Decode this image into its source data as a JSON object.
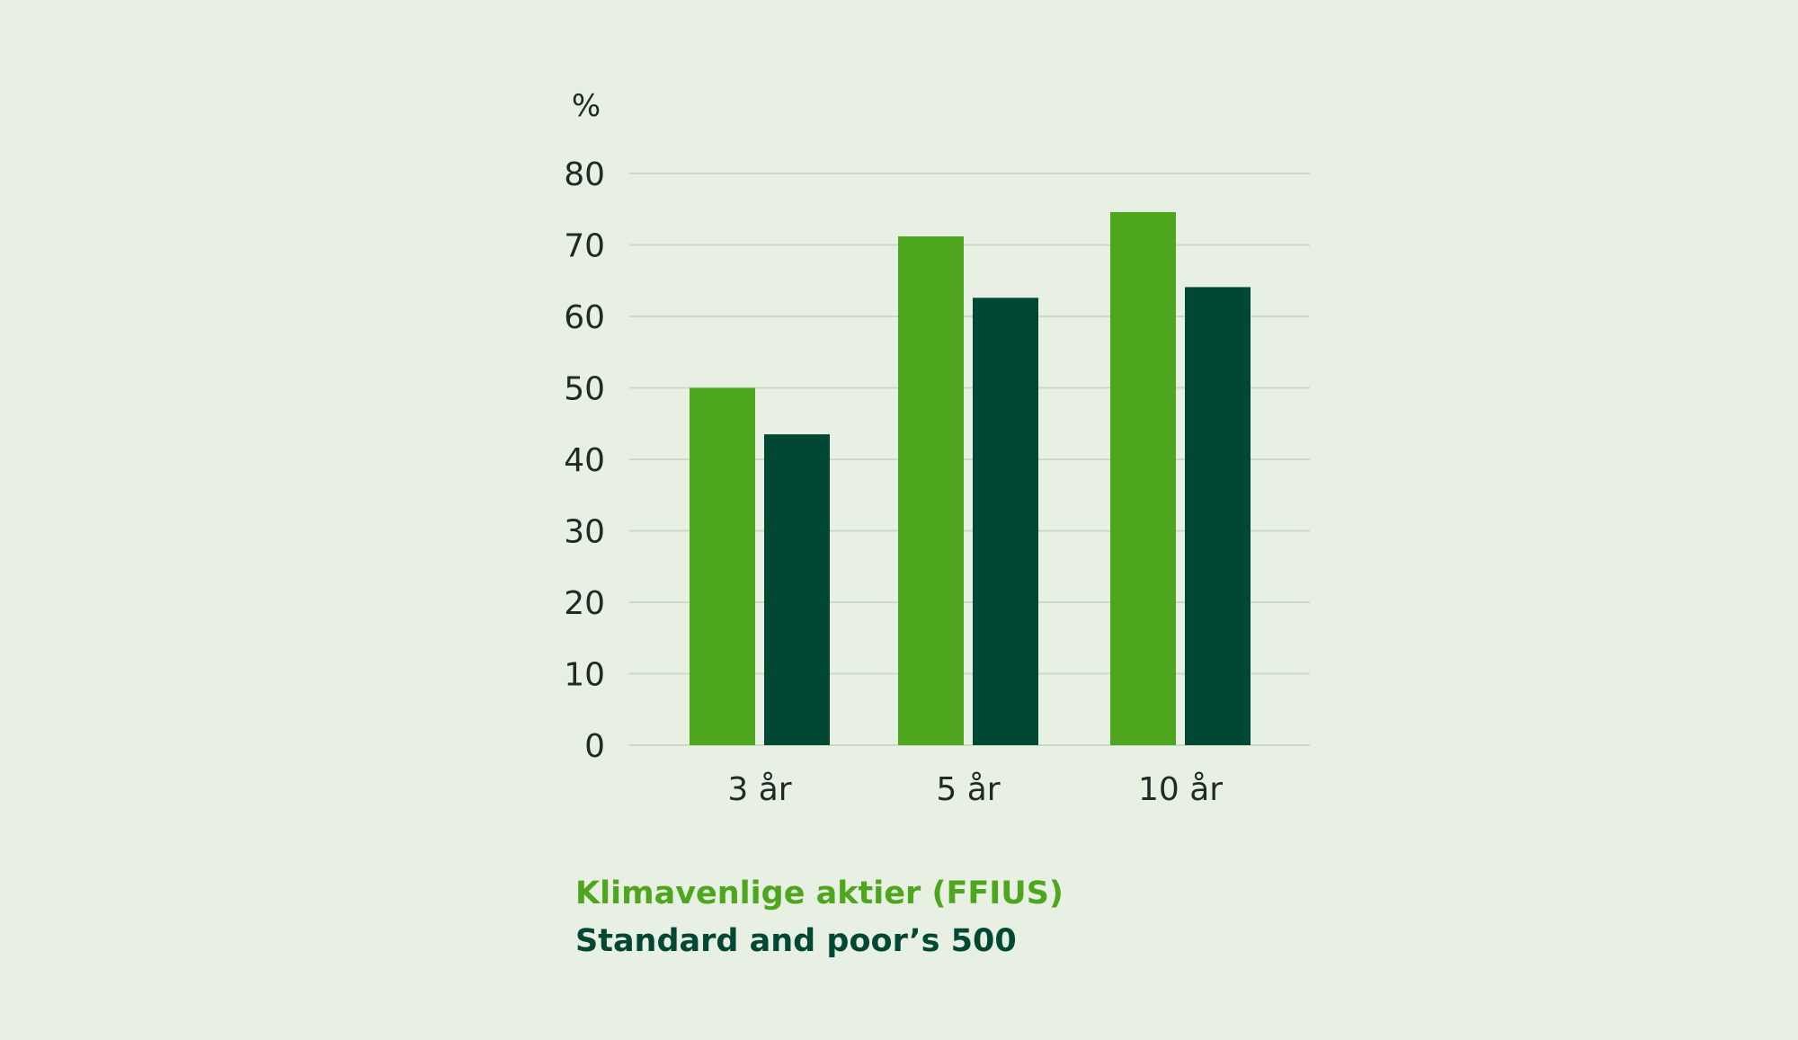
{
  "chart_data": {
    "type": "bar",
    "ylabel": "%",
    "categories": [
      "3 år",
      "5 år",
      "10 år"
    ],
    "series": [
      {
        "name": "Klimavenlige aktier (FFIUS)",
        "values": [
          50,
          71.2,
          74.6
        ],
        "color": "#4ea61e"
      },
      {
        "name": "Standard and poor’s 500",
        "values": [
          43.5,
          62.6,
          64.1
        ],
        "color": "#004833"
      }
    ],
    "ylim": [
      0,
      80
    ],
    "yticks": [
      0,
      10,
      20,
      30,
      40,
      50,
      60,
      70,
      80
    ],
    "grid": true,
    "gridColor": "#c9dcc3",
    "legend": "bottom-left"
  }
}
